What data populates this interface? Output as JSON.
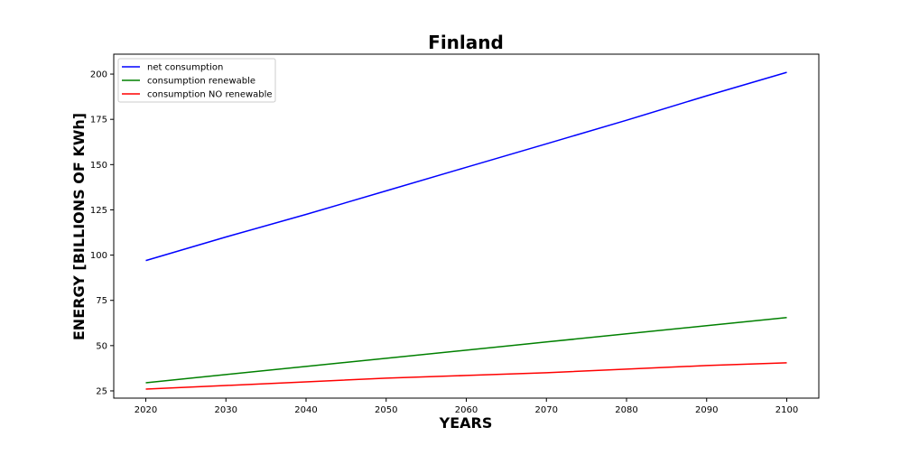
{
  "chart_data": {
    "type": "line",
    "title": "Finland",
    "xlabel": "YEARS",
    "ylabel": "ENERGY [BILLIONS OF KWh]",
    "xlim": [
      2016,
      2104
    ],
    "ylim": [
      21,
      211
    ],
    "x_ticks": [
      2020,
      2030,
      2040,
      2050,
      2060,
      2070,
      2080,
      2090,
      2100
    ],
    "y_ticks": [
      25,
      50,
      75,
      100,
      125,
      150,
      175,
      200
    ],
    "grid": false,
    "legend_position": "top-left",
    "x": [
      2020,
      2030,
      2040,
      2050,
      2060,
      2070,
      2080,
      2090,
      2100
    ],
    "series": [
      {
        "name": "net consumption",
        "color": "#0000ff",
        "values": [
          97,
          110,
          122.5,
          135.5,
          148.5,
          161.5,
          174.5,
          188,
          201
        ]
      },
      {
        "name": "consumption renewable",
        "color": "#008000",
        "values": [
          29.5,
          34,
          38.5,
          43,
          47.5,
          52,
          56.5,
          61,
          65.5
        ]
      },
      {
        "name": "consumption NO renewable",
        "color": "#ff0000",
        "values": [
          26,
          28,
          30,
          32,
          33.5,
          35,
          37,
          39,
          40.5
        ]
      }
    ]
  }
}
